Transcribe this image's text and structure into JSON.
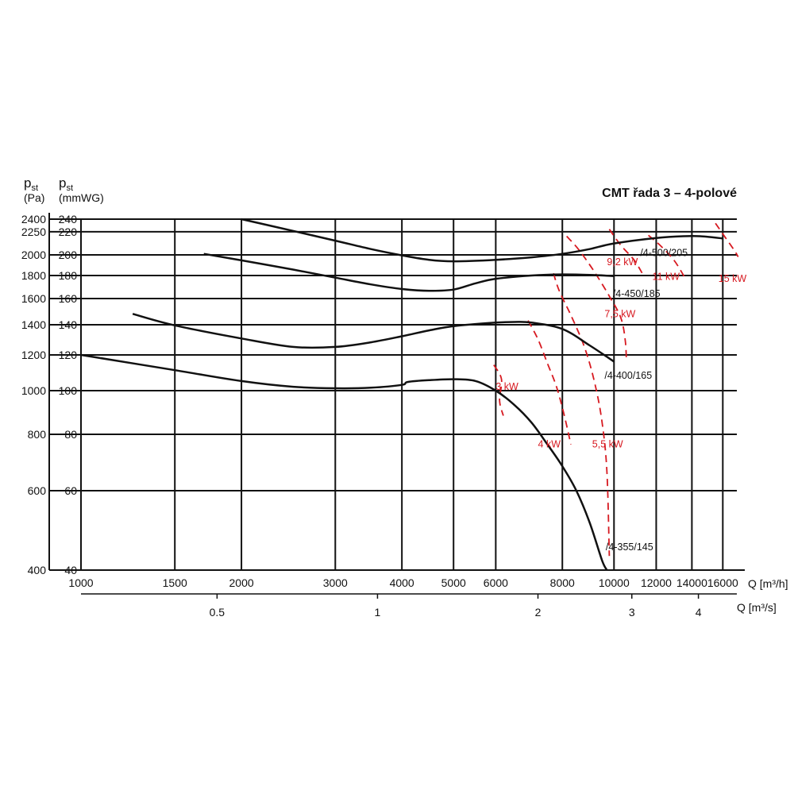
{
  "chart_data": {
    "type": "line",
    "title": "CMT řada 3 – 4-polové",
    "x_scale": "log",
    "y_scale": "log",
    "xlim": [
      1000,
      17000
    ],
    "ylim": [
      400,
      2400
    ],
    "grid": true,
    "left_axis": {
      "symbol_main": "p",
      "symbol_sub": "st",
      "unit": "(Pa)",
      "ticks": [
        400,
        600,
        800,
        1000,
        1200,
        1400,
        1600,
        1800,
        2000,
        2250,
        2400
      ]
    },
    "inner_axis": {
      "symbol_main": "p",
      "symbol_sub": "st",
      "unit": "(mmWG)",
      "ticks": [
        40,
        60,
        80,
        100,
        120,
        140,
        160,
        180,
        200,
        220,
        240
      ]
    },
    "bottom_axis_m3h": {
      "label": "Q [m³/h]",
      "ticks": [
        1000,
        1500,
        2000,
        3000,
        4000,
        5000,
        6000,
        8000,
        10000,
        12000,
        14000,
        16000
      ]
    },
    "bottom_axis_m3s": {
      "label": "Q [m³/s]",
      "ticks": [
        "0.5",
        "1",
        "2",
        "3",
        "4"
      ]
    },
    "series": [
      {
        "name": "/4-500/205",
        "points": [
          [
            2000,
            2400
          ],
          [
            2500,
            2260
          ],
          [
            3000,
            2150
          ],
          [
            3500,
            2060
          ],
          [
            4000,
            1995
          ],
          [
            4500,
            1950
          ],
          [
            5000,
            1935
          ],
          [
            6000,
            1950
          ],
          [
            7000,
            1975
          ],
          [
            8000,
            2010
          ],
          [
            9000,
            2060
          ],
          [
            10000,
            2120
          ],
          [
            12000,
            2180
          ],
          [
            13500,
            2200
          ],
          [
            14500,
            2200
          ],
          [
            16000,
            2175
          ]
        ]
      },
      {
        "name": "/4-450/185",
        "points": [
          [
            1700,
            2010
          ],
          [
            2000,
            1945
          ],
          [
            2500,
            1855
          ],
          [
            3000,
            1780
          ],
          [
            3500,
            1720
          ],
          [
            4000,
            1680
          ],
          [
            4500,
            1665
          ],
          [
            5000,
            1675
          ],
          [
            5500,
            1730
          ],
          [
            6000,
            1770
          ],
          [
            7000,
            1800
          ],
          [
            8000,
            1810
          ],
          [
            9000,
            1805
          ],
          [
            10000,
            1795
          ]
        ]
      },
      {
        "name": "/4-400/165",
        "points": [
          [
            1250,
            1480
          ],
          [
            1500,
            1395
          ],
          [
            2000,
            1305
          ],
          [
            2500,
            1250
          ],
          [
            3000,
            1250
          ],
          [
            3500,
            1280
          ],
          [
            4000,
            1320
          ],
          [
            4500,
            1360
          ],
          [
            5000,
            1390
          ],
          [
            6000,
            1415
          ],
          [
            6500,
            1420
          ],
          [
            7000,
            1415
          ],
          [
            8000,
            1370
          ],
          [
            9000,
            1260
          ],
          [
            10000,
            1160
          ]
        ]
      },
      {
        "name": "/4-355/145",
        "points": [
          [
            1000,
            1200
          ],
          [
            1500,
            1110
          ],
          [
            2000,
            1050
          ],
          [
            2500,
            1020
          ],
          [
            3000,
            1012
          ],
          [
            3500,
            1015
          ],
          [
            4000,
            1030
          ],
          [
            4100,
            1045
          ],
          [
            4500,
            1055
          ],
          [
            5000,
            1060
          ],
          [
            5500,
            1050
          ],
          [
            6000,
            1000
          ],
          [
            6500,
            930
          ],
          [
            7000,
            850
          ],
          [
            7500,
            760
          ],
          [
            8000,
            680
          ],
          [
            8500,
            600
          ],
          [
            9000,
            510
          ],
          [
            9500,
            420
          ],
          [
            9700,
            400
          ]
        ]
      }
    ],
    "power_lines": [
      {
        "label": "3 kW",
        "points": [
          [
            5950,
            1140
          ],
          [
            6150,
            1060
          ],
          [
            6100,
            950
          ],
          [
            6200,
            880
          ]
        ]
      },
      {
        "label": "4 kW",
        "points": [
          [
            6900,
            1430
          ],
          [
            7200,
            1300
          ],
          [
            7500,
            1150
          ],
          [
            7800,
            1020
          ],
          [
            8050,
            890
          ],
          [
            8300,
            760
          ]
        ]
      },
      {
        "label": "5,5 kW",
        "points": [
          [
            7700,
            1820
          ],
          [
            7900,
            1660
          ],
          [
            8300,
            1470
          ],
          [
            8800,
            1250
          ],
          [
            9200,
            1040
          ],
          [
            9500,
            850
          ],
          [
            9700,
            660
          ],
          [
            9800,
            430
          ]
        ]
      },
      {
        "label": "7,5 kW",
        "points": [
          [
            8150,
            2200
          ],
          [
            8600,
            2050
          ],
          [
            9200,
            1830
          ],
          [
            9800,
            1620
          ],
          [
            10300,
            1450
          ],
          [
            10500,
            1290
          ],
          [
            10550,
            1160
          ]
        ]
      },
      {
        "label": "9,2 kW",
        "points": [
          [
            9800,
            2280
          ],
          [
            10300,
            2100
          ],
          [
            10900,
            1950
          ],
          [
            11300,
            1820
          ]
        ]
      },
      {
        "label": "11 kW",
        "points": [
          [
            11600,
            2210
          ],
          [
            12200,
            2100
          ],
          [
            12900,
            1960
          ],
          [
            13400,
            1830
          ],
          [
            13600,
            1770
          ]
        ]
      },
      {
        "label": "15 kW",
        "points": [
          [
            15500,
            2350
          ],
          [
            16200,
            2180
          ],
          [
            16800,
            2050
          ],
          [
            17100,
            1980
          ]
        ]
      }
    ]
  }
}
